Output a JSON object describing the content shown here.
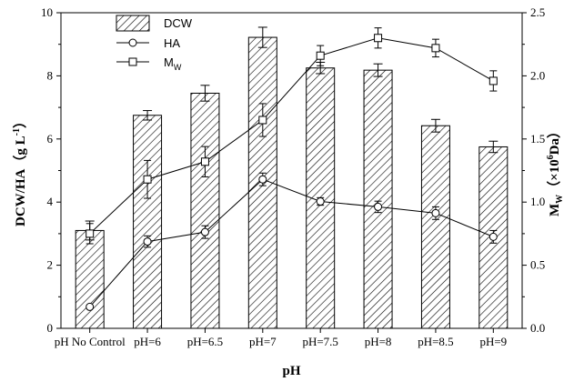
{
  "chart_data": {
    "type": "bar",
    "categories": [
      "pH No Control",
      "pH=6",
      "pH=6.5",
      "pH=7",
      "pH=7.5",
      "pH=8",
      "pH=8.5",
      "pH=9"
    ],
    "xlabel": "pH",
    "ylabel_parts": [
      "DCW/HA",
      "（g L",
      "-1",
      "）"
    ],
    "y2label_parts": [
      "M",
      "W",
      "（×10",
      "6",
      "Da）"
    ],
    "ylim": [
      0,
      10
    ],
    "yticks": [
      0,
      2,
      4,
      6,
      8,
      10
    ],
    "y2lim": [
      0.0,
      2.5
    ],
    "y2ticks": [
      "0.0",
      "0.5",
      "1.0",
      "1.5",
      "2.0",
      "2.5"
    ],
    "series": [
      {
        "name": "DCW",
        "kind": "bar",
        "axis": "left",
        "pattern": "diagonal-hatch",
        "values": [
          3.1,
          6.75,
          7.45,
          9.22,
          8.25,
          8.18,
          6.42,
          5.75
        ],
        "errors": [
          0.3,
          0.15,
          0.25,
          0.32,
          0.18,
          0.2,
          0.2,
          0.18
        ]
      },
      {
        "name": "HA",
        "kind": "line",
        "marker": "circle",
        "axis": "left",
        "values": [
          0.68,
          2.75,
          3.05,
          4.72,
          4.02,
          3.85,
          3.65,
          2.9
        ],
        "errors": [
          0.05,
          0.18,
          0.2,
          0.2,
          0.12,
          0.18,
          0.2,
          0.2
        ]
      },
      {
        "name_main": "M",
        "name_sub": "W",
        "kind": "line",
        "marker": "square",
        "axis": "right",
        "values": [
          0.75,
          1.18,
          1.32,
          1.65,
          2.16,
          2.3,
          2.22,
          1.96
        ],
        "errors": [
          0.08,
          0.15,
          0.12,
          0.13,
          0.08,
          0.08,
          0.07,
          0.08
        ]
      }
    ],
    "legend_position": "top-left"
  }
}
